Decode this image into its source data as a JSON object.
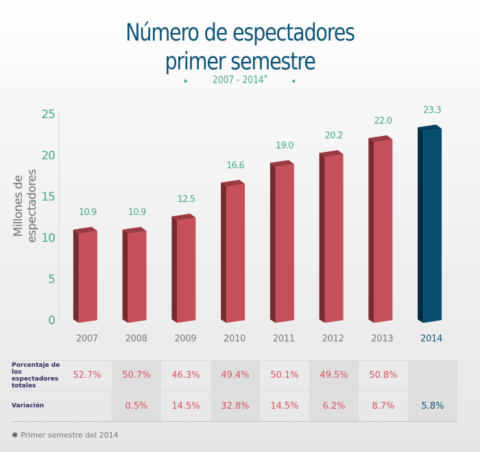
{
  "header": {
    "title_line1": "Número de espectadores",
    "title_line2": "primer semestre",
    "subtitle": "2007 - 2014",
    "subtitle_marker": "*"
  },
  "colors": {
    "title": "#0f5475",
    "accent_green": "#47a882",
    "bar_red": "#c6505a",
    "bar_red_side": "#762b31",
    "bar_red_top": "#9b3a42",
    "bar_blue": "#054e6e",
    "bar_blue_side": "#022c40",
    "bar_blue_top": "#034060",
    "pct_text": "#d9535f",
    "label_text": "#2f2a5c"
  },
  "chart_data": {
    "type": "bar",
    "title": "Número de espectadores primer semestre",
    "subtitle": "2007 - 2014*",
    "xlabel": "",
    "ylabel": "Millones de espectadores",
    "ylim": [
      0,
      25
    ],
    "yticks": [
      0,
      5,
      10,
      15,
      20,
      25
    ],
    "categories": [
      "2007",
      "2008",
      "2009",
      "2010",
      "2011",
      "2012",
      "2013",
      "2014"
    ],
    "values": [
      10.9,
      10.9,
      12.5,
      16.6,
      19.0,
      20.2,
      22.0,
      23.3
    ],
    "value_labels": [
      "10.9",
      "10.9",
      "12.5",
      "16.6",
      "19.0",
      "20.2",
      "22.0",
      "23.3"
    ],
    "highlight_index": 7,
    "grid": false,
    "legend": "none"
  },
  "table": {
    "rows": [
      {
        "label": "Porcentaje de los espectadores totales",
        "values": [
          "52.7%",
          "50.7%",
          "46.3%",
          "49.4%",
          "50.1%",
          "49.5%",
          "50.8%",
          ""
        ]
      },
      {
        "label": "Variación",
        "values": [
          "",
          "0.5%",
          "14.5%",
          "32.8%",
          "14.5%",
          "6.2%",
          "8.7%",
          "5.8%"
        ]
      }
    ]
  },
  "footnote": {
    "marker": "✱",
    "text": "Primer semestre del 2014"
  }
}
